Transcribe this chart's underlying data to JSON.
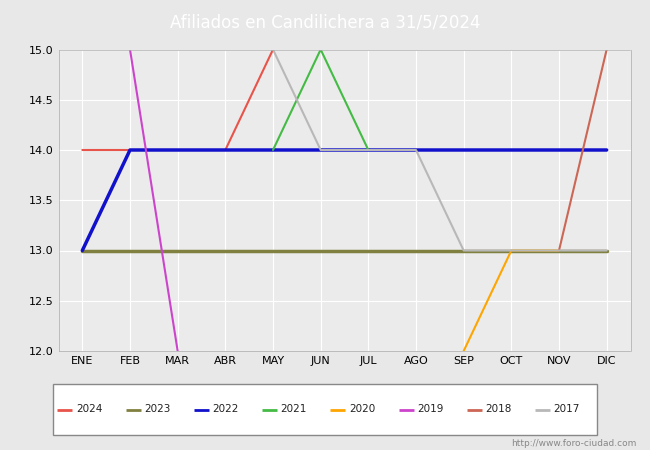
{
  "title": "Afiliados en Candilichera a 31/5/2024",
  "header_bg": "#4a8fdb",
  "months": [
    "ENE",
    "FEB",
    "MAR",
    "ABR",
    "MAY",
    "JUN",
    "JUL",
    "AGO",
    "SEP",
    "OCT",
    "NOV",
    "DIC"
  ],
  "month_nums": [
    1,
    2,
    3,
    4,
    5,
    6,
    7,
    8,
    9,
    10,
    11,
    12
  ],
  "ylim": [
    12.0,
    15.0
  ],
  "yticks": [
    12.0,
    12.5,
    13.0,
    13.5,
    14.0,
    14.5,
    15.0
  ],
  "series": {
    "2024": {
      "color": "#e8534a",
      "data": [
        [
          1,
          14.0
        ],
        [
          2,
          14.0
        ],
        [
          3,
          14.0
        ],
        [
          4,
          14.0
        ],
        [
          5,
          15.0
        ]
      ]
    },
    "2023": {
      "color": "#808040",
      "data": [
        [
          1,
          13.0
        ],
        [
          12,
          13.0
        ]
      ]
    },
    "2022": {
      "color": "#1111cc",
      "data": [
        [
          1,
          13.0
        ],
        [
          2,
          14.0
        ],
        [
          3,
          14.0
        ],
        [
          4,
          14.0
        ],
        [
          5,
          14.0
        ],
        [
          6,
          14.0
        ],
        [
          7,
          14.0
        ],
        [
          8,
          14.0
        ],
        [
          9,
          14.0
        ],
        [
          10,
          14.0
        ],
        [
          11,
          14.0
        ],
        [
          12,
          14.0
        ]
      ]
    },
    "2021": {
      "color": "#44bb44",
      "data": [
        [
          5,
          14.0
        ],
        [
          6,
          15.0
        ],
        [
          7,
          14.0
        ]
      ]
    },
    "2020": {
      "color": "#ffa500",
      "data": [
        [
          9,
          12.0
        ],
        [
          10,
          13.0
        ],
        [
          11,
          13.0
        ]
      ]
    },
    "2019": {
      "color": "#cc44cc",
      "data": [
        [
          2,
          15.0
        ],
        [
          3,
          12.0
        ]
      ]
    },
    "2018": {
      "color": "#cc6655",
      "data": [
        [
          11,
          13.0
        ],
        [
          12,
          15.0
        ]
      ]
    },
    "2017": {
      "color": "#b8b8b8",
      "data": [
        [
          5,
          15.0
        ],
        [
          6,
          14.0
        ],
        [
          7,
          14.0
        ],
        [
          8,
          14.0
        ],
        [
          9,
          13.0
        ],
        [
          10,
          13.0
        ],
        [
          11,
          13.0
        ],
        [
          12,
          13.0
        ]
      ]
    }
  },
  "legend_order": [
    "2024",
    "2023",
    "2022",
    "2021",
    "2020",
    "2019",
    "2018",
    "2017"
  ],
  "watermark": "http://www.foro-ciudad.com",
  "bg_color": "#e8e8e8",
  "plot_bg": "#ebebeb",
  "grid_color": "#ffffff"
}
